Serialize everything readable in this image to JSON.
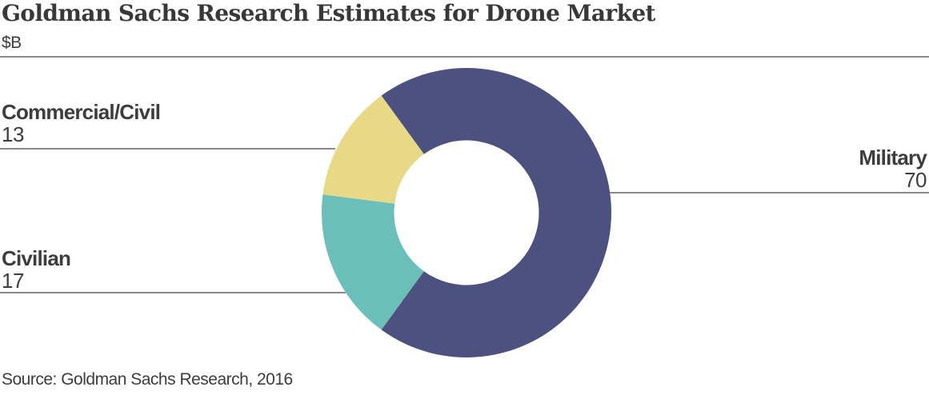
{
  "source": {
    "text": "Source: Goldman Sachs Research, 2016"
  },
  "colors": {
    "background": "#ffffff",
    "title": "#383838",
    "text": "#3d3d3d",
    "rule": "#8a8a8a",
    "military": "#4d5180",
    "civilian": "#6abfb8",
    "commercial_civil": "#e7d985"
  },
  "chart_data": {
    "type": "pie",
    "subtype": "donut",
    "title": "Goldman Sachs Research Estimates for Drone Market",
    "unit": "$B",
    "categories": [
      "Military",
      "Civilian",
      "Commercial/Civil"
    ],
    "values": [
      70,
      17,
      13
    ],
    "total": 100,
    "colors": [
      "#4d5180",
      "#6abfb8",
      "#e7d985"
    ],
    "start_angle_deg": -36,
    "direction": "clockwise",
    "inner_radius_ratio": 0.5,
    "legend_position": "none",
    "labels_style": "callout-lines"
  }
}
